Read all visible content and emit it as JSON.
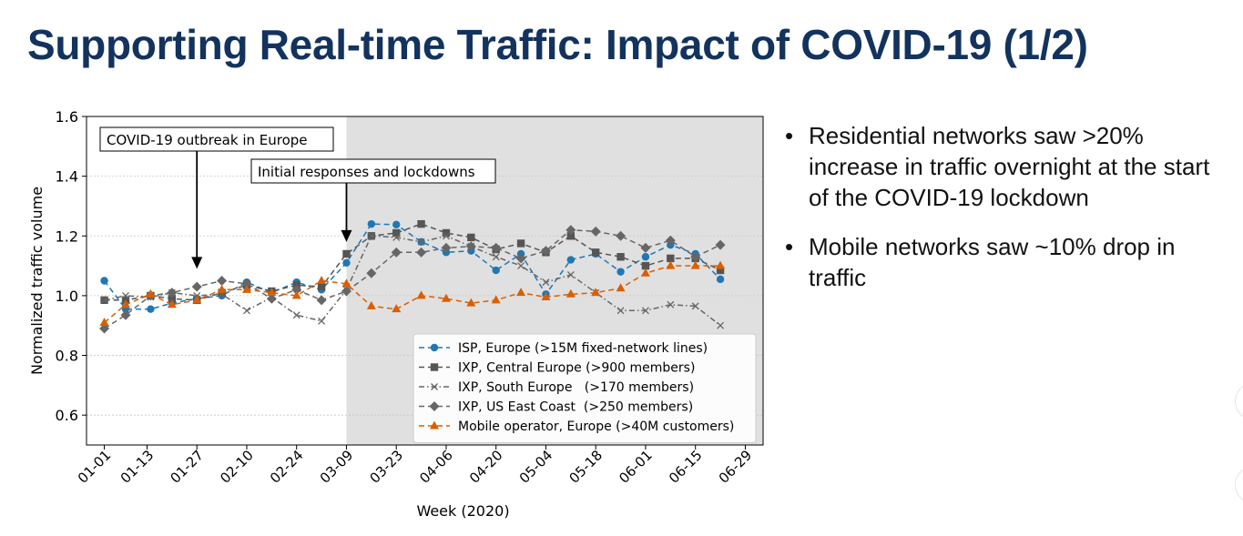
{
  "slide": {
    "title": "Supporting Real-time Traffic: Impact of COVID-19 (1/2)",
    "title_color": "#13335e"
  },
  "bullets": [
    {
      "text": "Residential networks saw >20% increase in traffic overnight at the start of the COVID-19 lockdown"
    },
    {
      "text": "Mobile networks saw ~10% drop in traffic"
    }
  ],
  "chart_data": {
    "type": "line",
    "xlabel": "Week (2020)",
    "ylabel": "Normalized traffic volume",
    "ylim": [
      0.5,
      1.6
    ],
    "yticks": [
      0.6,
      0.8,
      1.0,
      1.2,
      1.4,
      1.6
    ],
    "x_date_range": [
      "2019-12-27",
      "2020-07-04"
    ],
    "x_ticks": [
      {
        "date": "2020-01-01",
        "label": "01-01"
      },
      {
        "date": "2020-01-13",
        "label": "01-13"
      },
      {
        "date": "2020-01-27",
        "label": "01-27"
      },
      {
        "date": "2020-02-10",
        "label": "02-10"
      },
      {
        "date": "2020-02-24",
        "label": "02-24"
      },
      {
        "date": "2020-03-09",
        "label": "03-09"
      },
      {
        "date": "2020-03-23",
        "label": "03-23"
      },
      {
        "date": "2020-04-06",
        "label": "04-06"
      },
      {
        "date": "2020-04-20",
        "label": "04-20"
      },
      {
        "date": "2020-05-04",
        "label": "05-04"
      },
      {
        "date": "2020-05-18",
        "label": "05-18"
      },
      {
        "date": "2020-06-01",
        "label": "06-01"
      },
      {
        "date": "2020-06-15",
        "label": "06-15"
      },
      {
        "date": "2020-06-29",
        "label": "06-29"
      }
    ],
    "shaded_region": {
      "from": "2020-03-09",
      "to": "2020-07-04",
      "color": "#e0e0e0"
    },
    "grid": "horizontal",
    "legend_position": "bottom-right",
    "annotations": [
      {
        "text": "COVID-19 outbreak in Europe",
        "arrow_date": "2020-01-27",
        "arrow_y": 1.09
      },
      {
        "text": "Initial responses and lockdowns",
        "arrow_date": "2020-03-09",
        "arrow_y": 1.18
      }
    ],
    "series": [
      {
        "name": "ISP, Europe (>15M fixed-network lines)",
        "color": "#1f77b4",
        "marker": "circle",
        "dash": "dashed",
        "points": [
          [
            "2020-01-01",
            1.05
          ],
          [
            "2020-01-07",
            0.955
          ],
          [
            "2020-01-14",
            0.955
          ],
          [
            "2020-01-20",
            0.975
          ],
          [
            "2020-01-27",
            0.99
          ],
          [
            "2020-02-03",
            1.0
          ],
          [
            "2020-02-10",
            1.045
          ],
          [
            "2020-02-17",
            1.01
          ],
          [
            "2020-02-24",
            1.045
          ],
          [
            "2020-03-02",
            1.02
          ],
          [
            "2020-03-09",
            1.11
          ],
          [
            "2020-03-16",
            1.24
          ],
          [
            "2020-03-23",
            1.238
          ],
          [
            "2020-03-30",
            1.18
          ],
          [
            "2020-04-06",
            1.145
          ],
          [
            "2020-04-13",
            1.15
          ],
          [
            "2020-04-20",
            1.085
          ],
          [
            "2020-04-27",
            1.14
          ],
          [
            "2020-05-04",
            1.005
          ],
          [
            "2020-05-11",
            1.12
          ],
          [
            "2020-05-18",
            1.14
          ],
          [
            "2020-05-25",
            1.08
          ],
          [
            "2020-06-01",
            1.13
          ],
          [
            "2020-06-08",
            1.17
          ],
          [
            "2020-06-15",
            1.14
          ],
          [
            "2020-06-22",
            1.055
          ]
        ]
      },
      {
        "name": "IXP, Central Europe (>900 members)",
        "color": "#555555",
        "marker": "square",
        "dash": "dashed",
        "points": [
          [
            "2020-01-01",
            0.985
          ],
          [
            "2020-01-07",
            0.985
          ],
          [
            "2020-01-14",
            1.0
          ],
          [
            "2020-01-20",
            0.99
          ],
          [
            "2020-01-27",
            0.985
          ],
          [
            "2020-02-03",
            1.01
          ],
          [
            "2020-02-10",
            1.035
          ],
          [
            "2020-02-17",
            1.015
          ],
          [
            "2020-02-24",
            1.035
          ],
          [
            "2020-03-02",
            1.03
          ],
          [
            "2020-03-09",
            1.14
          ],
          [
            "2020-03-16",
            1.2
          ],
          [
            "2020-03-23",
            1.21
          ],
          [
            "2020-03-30",
            1.24
          ],
          [
            "2020-04-06",
            1.21
          ],
          [
            "2020-04-13",
            1.195
          ],
          [
            "2020-04-20",
            1.155
          ],
          [
            "2020-04-27",
            1.175
          ],
          [
            "2020-05-04",
            1.145
          ],
          [
            "2020-05-11",
            1.2
          ],
          [
            "2020-05-18",
            1.145
          ],
          [
            "2020-05-25",
            1.13
          ],
          [
            "2020-06-01",
            1.1
          ],
          [
            "2020-06-08",
            1.125
          ],
          [
            "2020-06-15",
            1.125
          ],
          [
            "2020-06-22",
            1.085
          ]
        ]
      },
      {
        "name": "IXP, South Europe   (>170 members)",
        "color": "#666666",
        "marker": "x",
        "dash": "dashdot",
        "points": [
          [
            "2020-01-01",
            0.985
          ],
          [
            "2020-01-07",
            1.0
          ],
          [
            "2020-01-14",
            0.995
          ],
          [
            "2020-01-20",
            1.01
          ],
          [
            "2020-01-27",
            1.0
          ],
          [
            "2020-02-03",
            1.005
          ],
          [
            "2020-02-10",
            0.95
          ],
          [
            "2020-02-17",
            0.995
          ],
          [
            "2020-02-24",
            0.935
          ],
          [
            "2020-03-02",
            0.915
          ],
          [
            "2020-03-09",
            1.02
          ],
          [
            "2020-03-16",
            1.2
          ],
          [
            "2020-03-23",
            1.195
          ],
          [
            "2020-03-30",
            1.18
          ],
          [
            "2020-04-06",
            1.2
          ],
          [
            "2020-04-13",
            1.165
          ],
          [
            "2020-04-20",
            1.13
          ],
          [
            "2020-04-27",
            1.1
          ],
          [
            "2020-05-04",
            1.045
          ],
          [
            "2020-05-11",
            1.07
          ],
          [
            "2020-05-18",
            1.01
          ],
          [
            "2020-05-25",
            0.95
          ],
          [
            "2020-06-01",
            0.95
          ],
          [
            "2020-06-08",
            0.97
          ],
          [
            "2020-06-15",
            0.965
          ],
          [
            "2020-06-22",
            0.9
          ]
        ]
      },
      {
        "name": "IXP, US East Coast  (>250 members)",
        "color": "#666666",
        "marker": "diamond",
        "dash": "dashed",
        "points": [
          [
            "2020-01-01",
            0.89
          ],
          [
            "2020-01-07",
            0.935
          ],
          [
            "2020-01-14",
            1.0
          ],
          [
            "2020-01-20",
            1.01
          ],
          [
            "2020-01-27",
            1.03
          ],
          [
            "2020-02-03",
            1.05
          ],
          [
            "2020-02-10",
            1.04
          ],
          [
            "2020-02-17",
            0.99
          ],
          [
            "2020-02-24",
            1.02
          ],
          [
            "2020-03-02",
            0.985
          ],
          [
            "2020-03-09",
            1.015
          ],
          [
            "2020-03-16",
            1.075
          ],
          [
            "2020-03-23",
            1.145
          ],
          [
            "2020-03-30",
            1.145
          ],
          [
            "2020-04-06",
            1.16
          ],
          [
            "2020-04-13",
            1.165
          ],
          [
            "2020-04-20",
            1.16
          ],
          [
            "2020-04-27",
            1.125
          ],
          [
            "2020-05-04",
            1.15
          ],
          [
            "2020-05-11",
            1.22
          ],
          [
            "2020-05-18",
            1.215
          ],
          [
            "2020-05-25",
            1.2
          ],
          [
            "2020-06-01",
            1.16
          ],
          [
            "2020-06-08",
            1.185
          ],
          [
            "2020-06-15",
            1.13
          ],
          [
            "2020-06-22",
            1.17
          ]
        ]
      },
      {
        "name": "Mobile operator, Europe (>40M customers)",
        "color": "#d95f02",
        "marker": "triangle",
        "dash": "dashed",
        "points": [
          [
            "2020-01-01",
            0.91
          ],
          [
            "2020-01-07",
            0.97
          ],
          [
            "2020-01-14",
            1.005
          ],
          [
            "2020-01-20",
            0.97
          ],
          [
            "2020-01-27",
            0.985
          ],
          [
            "2020-02-03",
            1.02
          ],
          [
            "2020-02-10",
            1.02
          ],
          [
            "2020-02-17",
            1.01
          ],
          [
            "2020-02-24",
            1.0
          ],
          [
            "2020-03-02",
            1.05
          ],
          [
            "2020-03-09",
            1.04
          ],
          [
            "2020-03-16",
            0.965
          ],
          [
            "2020-03-23",
            0.955
          ],
          [
            "2020-03-30",
            1.0
          ],
          [
            "2020-04-06",
            0.99
          ],
          [
            "2020-04-13",
            0.975
          ],
          [
            "2020-04-20",
            0.985
          ],
          [
            "2020-04-27",
            1.01
          ],
          [
            "2020-05-04",
            0.995
          ],
          [
            "2020-05-11",
            1.005
          ],
          [
            "2020-05-18",
            1.01
          ],
          [
            "2020-05-25",
            1.025
          ],
          [
            "2020-06-01",
            1.075
          ],
          [
            "2020-06-08",
            1.1
          ],
          [
            "2020-06-15",
            1.1
          ],
          [
            "2020-06-22",
            1.1
          ]
        ]
      }
    ]
  }
}
